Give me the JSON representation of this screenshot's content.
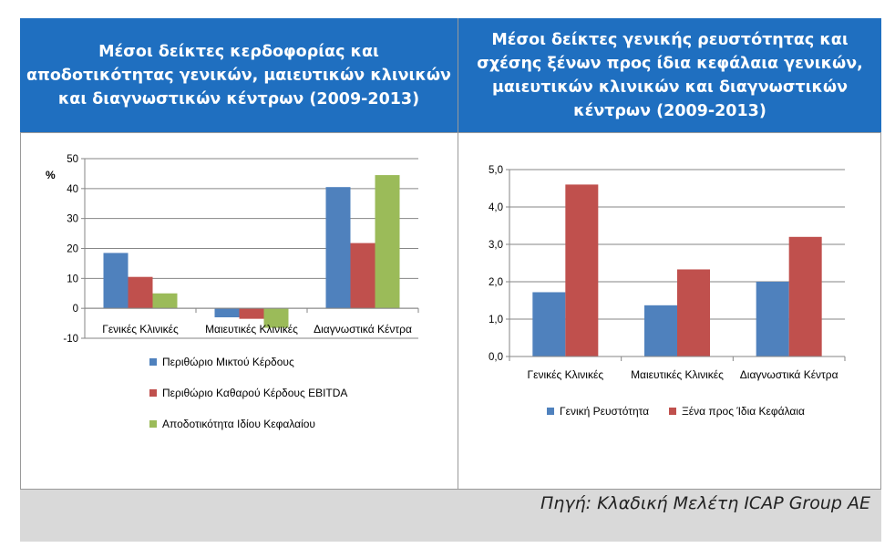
{
  "left_panel": {
    "title_lines": [
      "Μέσοι δείκτες κερδοφορίας και",
      "αποδοτικότητας γενικών, μαιευτικών κλινικών",
      "και διαγνωστικών κέντρων (2009-2013)"
    ]
  },
  "right_panel": {
    "title_lines": [
      "Μέσοι δείκτες γενικής ρευστότητας και",
      "σχέσης ξένων προς ίδια κεφάλαια γενικών,",
      "μαιευτικών κλινικών και διαγνωστικών",
      "κέντρων (2009-2013)"
    ]
  },
  "footer": {
    "source": "Πηγή: Κλαδική Μελέτη ICAP Group AE"
  },
  "chart_data": [
    {
      "type": "bar",
      "ylabel": "%",
      "ylim": [
        -10,
        50
      ],
      "yticks": [
        -10,
        0,
        10,
        20,
        30,
        40,
        50
      ],
      "grid": true,
      "legend_position": "bottom",
      "categories": [
        "Γενικές Κλινικές",
        "Μαιευτικές Κλινικές",
        "Διαγνωστικά Κέντρα"
      ],
      "series": [
        {
          "name": "Περιθώριο Μικτού Κέρδους",
          "color": "#4f81bd",
          "values": [
            18.5,
            -3.0,
            40.5
          ]
        },
        {
          "name": "Περιθώριο Καθαρού Κέρδους EBITDA",
          "color": "#c0504d",
          "values": [
            10.5,
            -3.5,
            21.8
          ]
        },
        {
          "name": "Αποδοτικότητα Ιδίου Κεφαλαίου",
          "color": "#9bbb59",
          "values": [
            5.0,
            -6.5,
            44.5
          ]
        }
      ]
    },
    {
      "type": "bar",
      "ylim": [
        0,
        5
      ],
      "yticks": [
        "0,0",
        "1,0",
        "2,0",
        "3,0",
        "4,0",
        "5,0"
      ],
      "grid": true,
      "legend_position": "bottom",
      "categories": [
        "Γενικές Κλινικές",
        "Μαιευτικές Κλινικές",
        "Διαγνωστικά Κέντρα"
      ],
      "series": [
        {
          "name": "Γενική Ρευστότητα",
          "color": "#4f81bd",
          "values": [
            1.72,
            1.37,
            2.0
          ]
        },
        {
          "name": "Ξένα προς Ίδια Κεφάλαια",
          "color": "#c0504d",
          "values": [
            4.6,
            2.33,
            3.2
          ]
        }
      ]
    }
  ]
}
